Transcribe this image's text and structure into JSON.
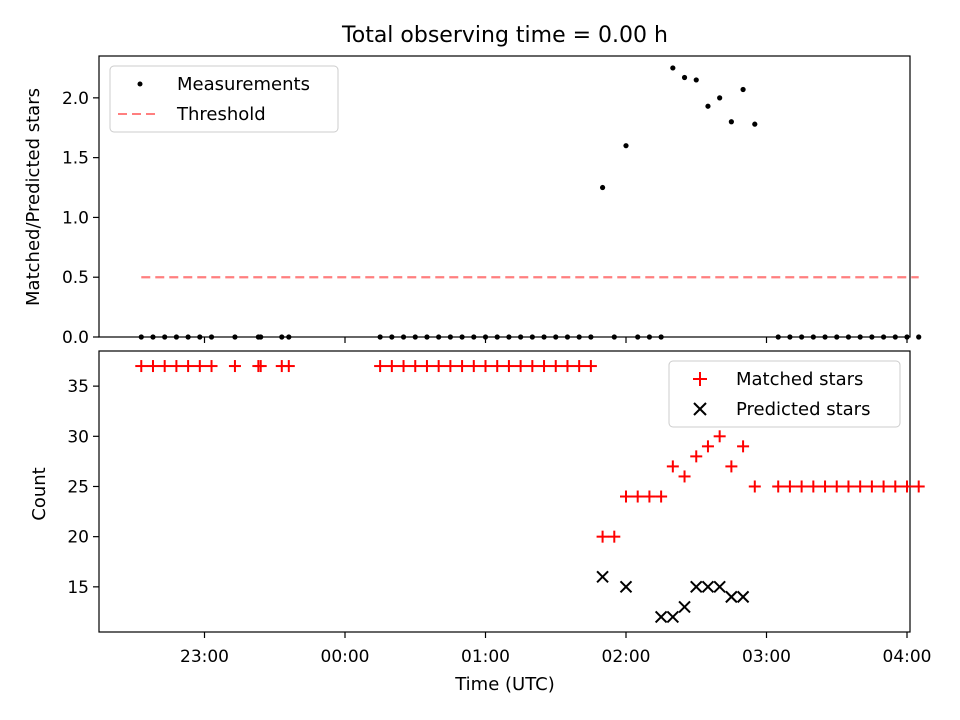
{
  "chart_data": [
    {
      "type": "scatter",
      "title": "Total observing time = 0.00 h",
      "ylabel": "Matched/Predicted stars",
      "ylim": [
        0,
        2.35
      ],
      "xlim": [
        "22:20",
        "04:00"
      ],
      "yticks": [
        "0.0",
        "0.5",
        "1.0",
        "1.5",
        "2.0"
      ],
      "legend_position": "top-left",
      "series": [
        {
          "name": "Measurements",
          "marker": "dot",
          "color": "#000000",
          "x": [
            "22:33",
            "22:38",
            "22:43",
            "22:48",
            "22:53",
            "22:58",
            "23:03",
            "23:13",
            "23:23",
            "23:24",
            "23:33",
            "23:36",
            "00:15",
            "00:20",
            "00:25",
            "00:30",
            "00:35",
            "00:40",
            "00:45",
            "00:50",
            "00:55",
            "01:00",
            "01:05",
            "01:10",
            "01:15",
            "01:20",
            "01:25",
            "01:30",
            "01:35",
            "01:40",
            "01:45",
            "01:50",
            "01:55",
            "02:00",
            "02:05",
            "02:10",
            "02:15",
            "02:20",
            "02:25",
            "02:30",
            "02:35",
            "02:40",
            "02:45",
            "02:50",
            "02:55",
            "03:05",
            "03:10",
            "03:15",
            "03:20",
            "03:25",
            "03:30",
            "03:35",
            "03:40",
            "03:45",
            "03:50",
            "03:55",
            "04:00",
            "04:05"
          ],
          "y": [
            0,
            0,
            0,
            0,
            0,
            0,
            0,
            0,
            0,
            0,
            0,
            0,
            0,
            0,
            0,
            0,
            0,
            0,
            0,
            0,
            0,
            0,
            0,
            0,
            0,
            0,
            0,
            0,
            0,
            0,
            0,
            1.25,
            0,
            1.6,
            0,
            0,
            0,
            2.25,
            2.17,
            2.15,
            1.93,
            2.0,
            1.8,
            2.07,
            1.78,
            0,
            0,
            0,
            0,
            0,
            0,
            0,
            0,
            0,
            0,
            0,
            0,
            0
          ]
        },
        {
          "name": "Threshold",
          "marker": "dashed-line",
          "color": "#ff7f7f",
          "x": [
            "22:33",
            "04:05"
          ],
          "y": [
            0.5,
            0.5
          ]
        }
      ]
    },
    {
      "type": "scatter",
      "ylabel": "Count",
      "xlabel": "Time (UTC)",
      "ylim": [
        10.5,
        38.5
      ],
      "xlim": [
        "22:20",
        "04:00"
      ],
      "yticks": [
        "15",
        "20",
        "25",
        "30",
        "35"
      ],
      "xticks": [
        "23:00",
        "00:00",
        "01:00",
        "02:00",
        "03:00",
        "04:00"
      ],
      "legend_position": "top-right",
      "series": [
        {
          "name": "Matched stars",
          "marker": "plus",
          "color": "#ff0000",
          "x": [
            "22:33",
            "22:38",
            "22:43",
            "22:48",
            "22:53",
            "22:58",
            "23:03",
            "23:13",
            "23:23",
            "23:24",
            "23:33",
            "23:36",
            "00:15",
            "00:20",
            "00:25",
            "00:30",
            "00:35",
            "00:40",
            "00:45",
            "00:50",
            "00:55",
            "01:00",
            "01:05",
            "01:10",
            "01:15",
            "01:20",
            "01:25",
            "01:30",
            "01:35",
            "01:40",
            "01:45",
            "01:50",
            "01:55",
            "02:00",
            "02:05",
            "02:10",
            "02:15",
            "02:20",
            "02:25",
            "02:30",
            "02:35",
            "02:40",
            "02:45",
            "02:50",
            "02:55",
            "03:05",
            "03:10",
            "03:15",
            "03:20",
            "03:25",
            "03:30",
            "03:35",
            "03:40",
            "03:45",
            "03:50",
            "03:55",
            "04:00",
            "04:05"
          ],
          "y": [
            37,
            37,
            37,
            37,
            37,
            37,
            37,
            37,
            37,
            37,
            37,
            37,
            37,
            37,
            37,
            37,
            37,
            37,
            37,
            37,
            37,
            37,
            37,
            37,
            37,
            37,
            37,
            37,
            37,
            37,
            37,
            20,
            20,
            24,
            24,
            24,
            24,
            27,
            26,
            28,
            29,
            30,
            27,
            29,
            25,
            25,
            25,
            25,
            25,
            25,
            25,
            25,
            25,
            25,
            25,
            25,
            25,
            25
          ]
        },
        {
          "name": "Predicted stars",
          "marker": "x",
          "color": "#000000",
          "x": [
            "01:50",
            "02:00",
            "02:15",
            "02:20",
            "02:25",
            "02:30",
            "02:35",
            "02:40",
            "02:45",
            "02:50"
          ],
          "y": [
            16,
            15,
            12,
            12,
            13,
            15,
            15,
            15,
            14,
            14
          ]
        }
      ]
    }
  ]
}
